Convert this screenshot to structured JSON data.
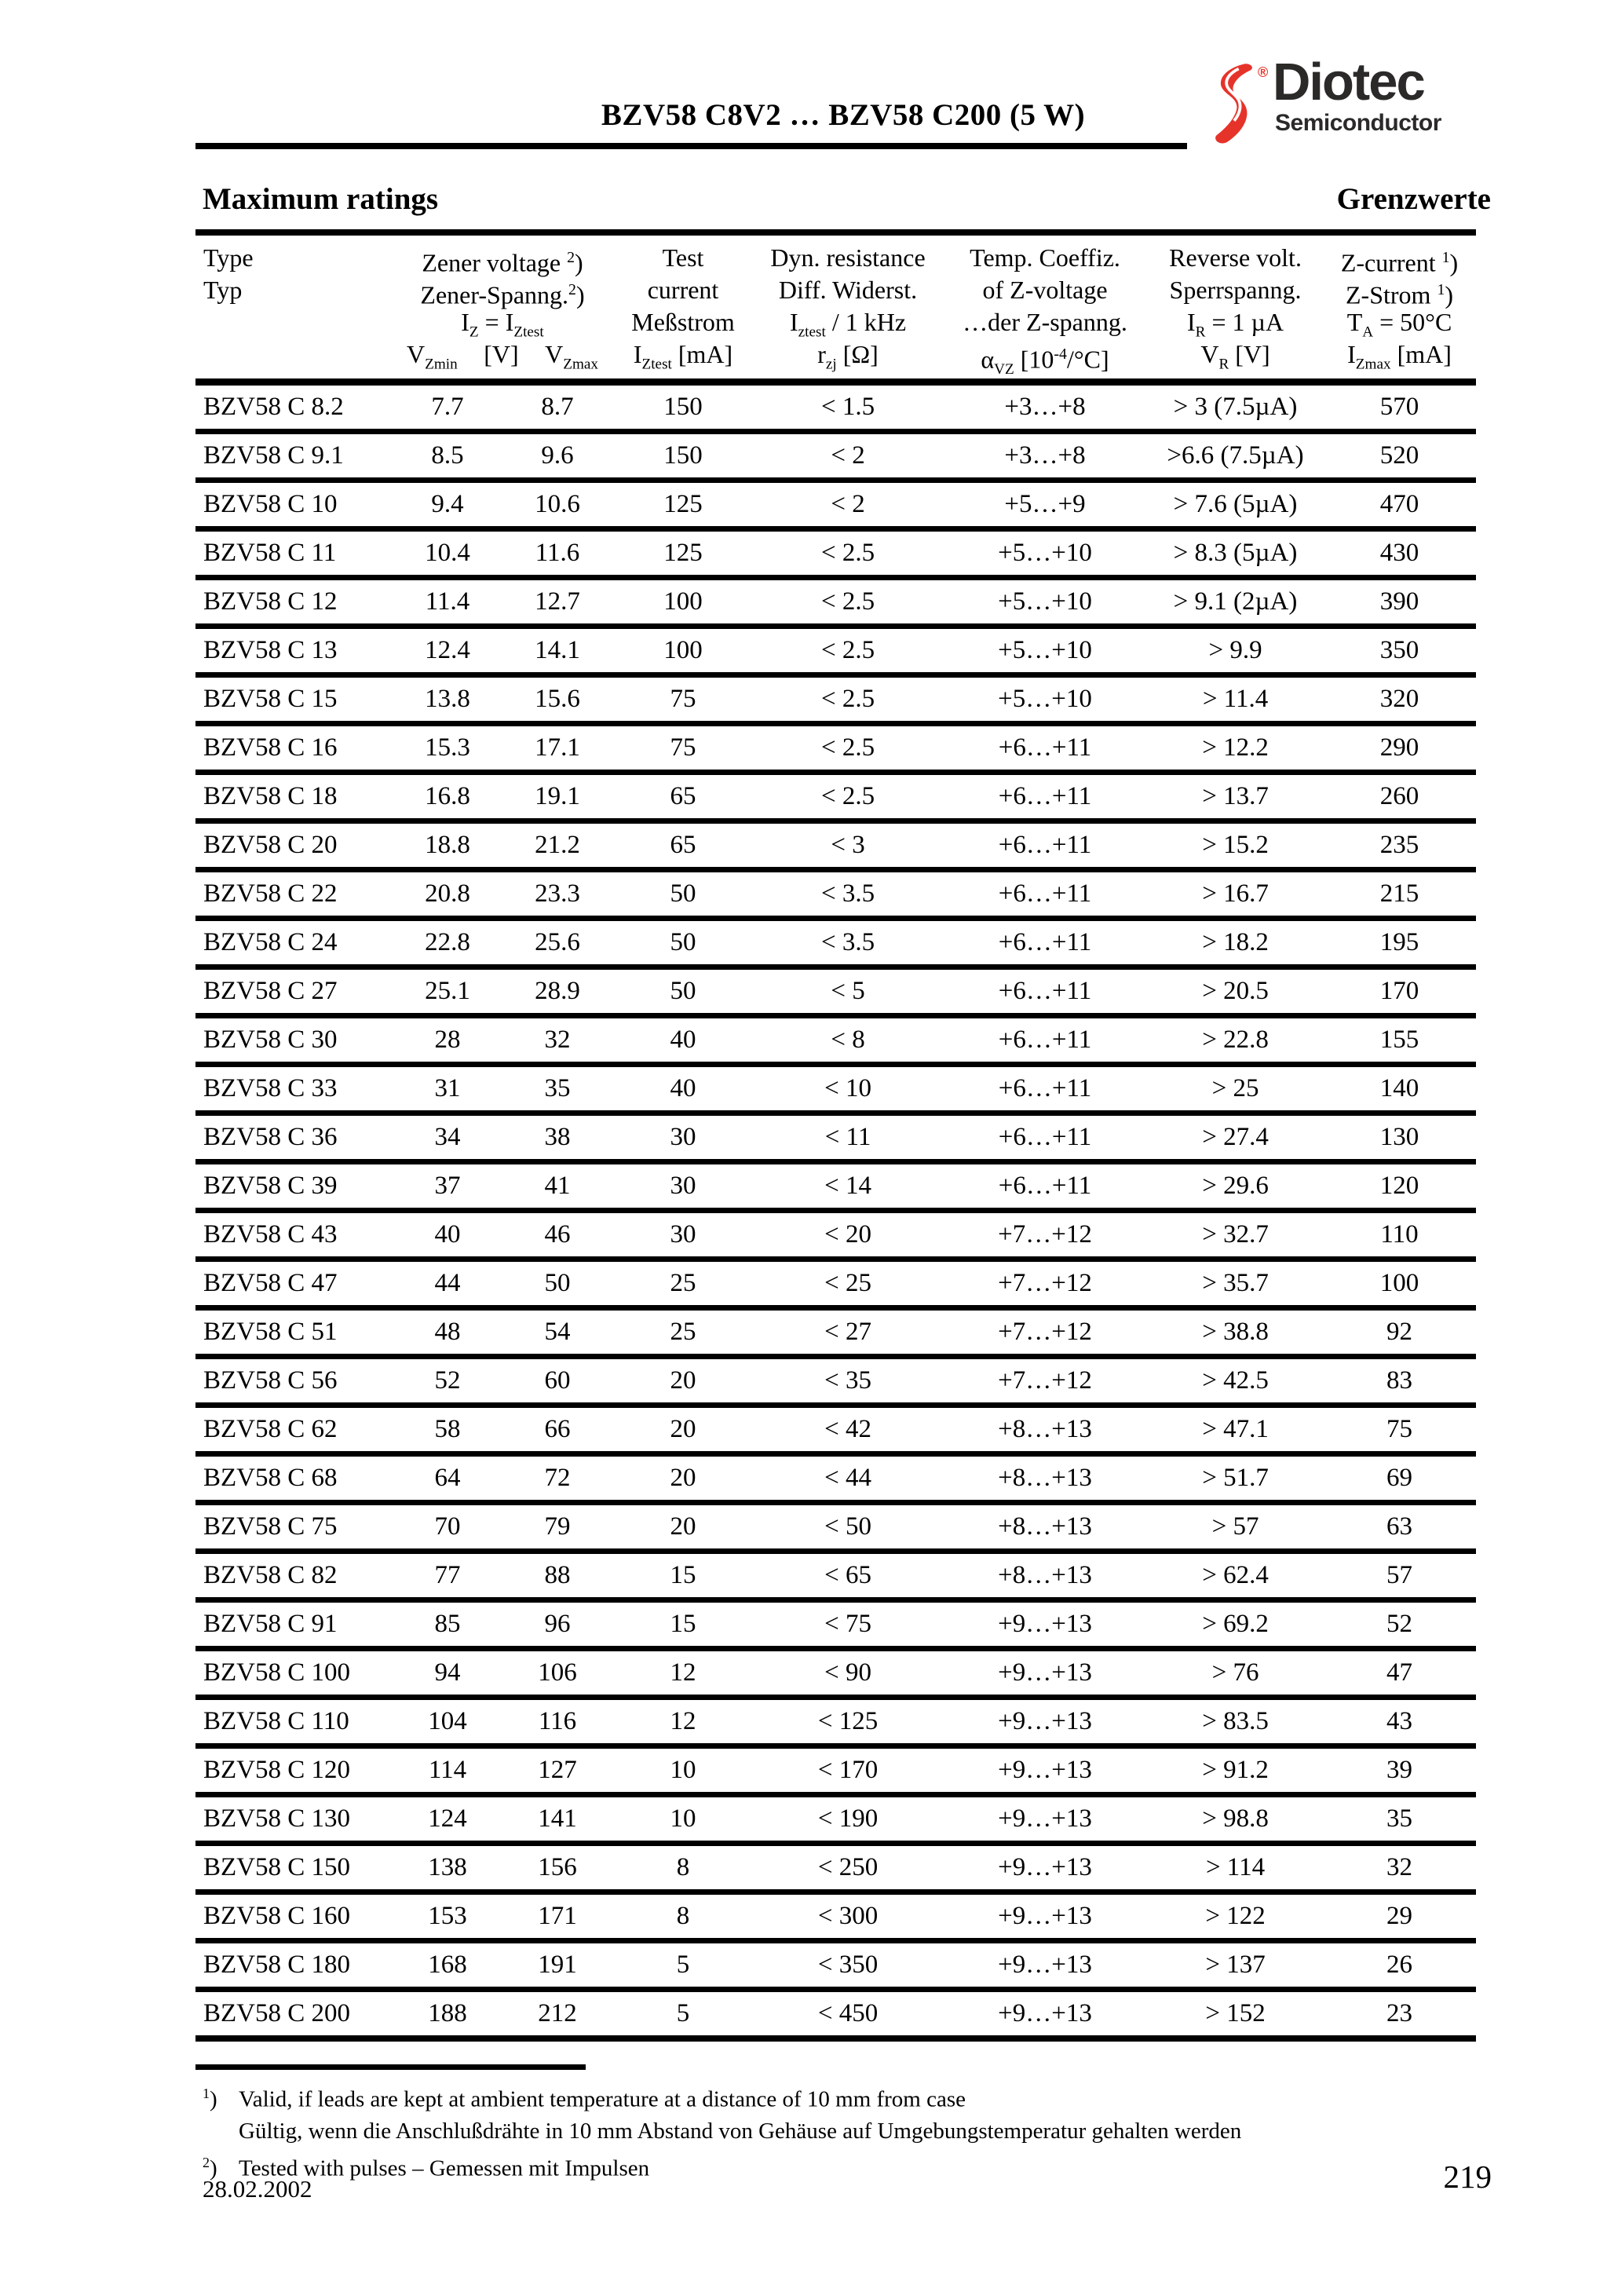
{
  "page": {
    "title": "BZV58 C8V2 … BZV58 C200 (5 W)",
    "section_left": "Maximum ratings",
    "section_right": "Grenzwerte",
    "date": "28.02.2002",
    "page_number": "219"
  },
  "logo": {
    "brand": "Diotec",
    "sub": "Semiconductor",
    "registered": "®",
    "brand_red": "#e6332a",
    "brand_dark": "#2b2a29"
  },
  "table": {
    "col_keys": [
      "type",
      "vzmin",
      "vzmax",
      "iztest",
      "rzj",
      "alpha-vz",
      "vr",
      "izmax"
    ],
    "header": {
      "type": [
        [
          {
            "t": "Type"
          }
        ],
        [
          {
            "t": "Typ"
          }
        ]
      ],
      "zener": {
        "lines": [
          [
            {
              "t": "Zener voltage "
            },
            {
              "sup": "2"
            },
            {
              "t": ")"
            }
          ],
          [
            {
              "t": "Zener-Spanng."
            },
            {
              "sup": "2"
            },
            {
              "t": ")"
            }
          ],
          [
            {
              "t": "I"
            },
            {
              "sub": "Z"
            },
            {
              "t": " = I"
            },
            {
              "sub": "Ztest"
            }
          ]
        ],
        "vmin": [
          {
            "t": "V"
          },
          {
            "sub": "Zmin"
          }
        ],
        "vunit": [
          {
            "t": "[V]"
          }
        ],
        "vmax": [
          {
            "t": "V"
          },
          {
            "sub": "Zmax"
          }
        ]
      },
      "test": [
        [
          {
            "t": "Test"
          }
        ],
        [
          {
            "t": "current"
          }
        ],
        [
          {
            "t": "Meßstrom"
          }
        ],
        [
          {
            "t": "I"
          },
          {
            "sub": "Ztest"
          },
          {
            "t": " [mA]"
          }
        ]
      ],
      "dyn": [
        [
          {
            "t": "Dyn. resistance"
          }
        ],
        [
          {
            "t": "Diff. Widerst."
          }
        ],
        [
          {
            "t": "I"
          },
          {
            "sub": "ztest"
          },
          {
            "t": " / 1 kHz"
          }
        ],
        [
          {
            "t": "r"
          },
          {
            "sub": "zj"
          },
          {
            "t": " [Ω]"
          }
        ]
      ],
      "temp": [
        [
          {
            "t": "Temp. Coeffiz."
          }
        ],
        [
          {
            "t": "of Z-voltage"
          }
        ],
        [
          {
            "t": "…der Z-spanng."
          }
        ],
        [
          {
            "t": "α"
          },
          {
            "sub": "VZ"
          },
          {
            "t": " [10"
          },
          {
            "sup": "-4"
          },
          {
            "t": "/°C]"
          }
        ]
      ],
      "reverse": [
        [
          {
            "t": "Reverse volt."
          }
        ],
        [
          {
            "t": "Sperrspanng."
          }
        ],
        [
          {
            "t": "I"
          },
          {
            "sub": "R"
          },
          {
            "t": " = 1 µA"
          }
        ],
        [
          {
            "t": "V"
          },
          {
            "sub": "R"
          },
          {
            "t": " [V]"
          }
        ]
      ],
      "zcur": [
        [
          {
            "t": "Z-current "
          },
          {
            "sup": "1"
          },
          {
            "t": ")"
          }
        ],
        [
          {
            "t": "Z-Strom "
          },
          {
            "sup": "1"
          },
          {
            "t": ")"
          }
        ],
        [
          {
            "t": "T"
          },
          {
            "sub": "A"
          },
          {
            "t": " = 50°C"
          }
        ],
        [
          {
            "t": "I"
          },
          {
            "sub": "Zmax"
          },
          {
            "t": " [mA]"
          }
        ]
      ]
    },
    "rows": [
      [
        "BZV58 C 8.2",
        "7.7",
        "8.7",
        "150",
        "< 1.5",
        "+3…+8",
        "> 3 (7.5µA)",
        "570"
      ],
      [
        "BZV58 C 9.1",
        "8.5",
        "9.6",
        "150",
        "< 2",
        "+3…+8",
        ">6.6 (7.5µA)",
        "520"
      ],
      [
        "BZV58 C 10",
        "9.4",
        "10.6",
        "125",
        "< 2",
        "+5…+9",
        "> 7.6 (5µA)",
        "470"
      ],
      [
        "BZV58 C 11",
        "10.4",
        "11.6",
        "125",
        "< 2.5",
        "+5…+10",
        "> 8.3 (5µA)",
        "430"
      ],
      [
        "BZV58 C 12",
        "11.4",
        "12.7",
        "100",
        "< 2.5",
        "+5…+10",
        "> 9.1 (2µA)",
        "390"
      ],
      [
        "BZV58 C 13",
        "12.4",
        "14.1",
        "100",
        "< 2.5",
        "+5…+10",
        "> 9.9",
        "350"
      ],
      [
        "BZV58 C 15",
        "13.8",
        "15.6",
        "75",
        "< 2.5",
        "+5…+10",
        "> 11.4",
        "320"
      ],
      [
        "BZV58 C 16",
        "15.3",
        "17.1",
        "75",
        "< 2.5",
        "+6…+11",
        "> 12.2",
        "290"
      ],
      [
        "BZV58 C 18",
        "16.8",
        "19.1",
        "65",
        "< 2.5",
        "+6…+11",
        "> 13.7",
        "260"
      ],
      [
        "BZV58 C 20",
        "18.8",
        "21.2",
        "65",
        "< 3",
        "+6…+11",
        "> 15.2",
        "235"
      ],
      [
        "BZV58 C 22",
        "20.8",
        "23.3",
        "50",
        "< 3.5",
        "+6…+11",
        "> 16.7",
        "215"
      ],
      [
        "BZV58 C 24",
        "22.8",
        "25.6",
        "50",
        "< 3.5",
        "+6…+11",
        "> 18.2",
        "195"
      ],
      [
        "BZV58 C 27",
        "25.1",
        "28.9",
        "50",
        "< 5",
        "+6…+11",
        "> 20.5",
        "170"
      ],
      [
        "BZV58 C 30",
        "28",
        "32",
        "40",
        "< 8",
        "+6…+11",
        "> 22.8",
        "155"
      ],
      [
        "BZV58 C 33",
        "31",
        "35",
        "40",
        "< 10",
        "+6…+11",
        "> 25",
        "140"
      ],
      [
        "BZV58 C 36",
        "34",
        "38",
        "30",
        "< 11",
        "+6…+11",
        "> 27.4",
        "130"
      ],
      [
        "BZV58 C 39",
        "37",
        "41",
        "30",
        "< 14",
        "+6…+11",
        "> 29.6",
        "120"
      ],
      [
        "BZV58 C 43",
        "40",
        "46",
        "30",
        "< 20",
        "+7…+12",
        "> 32.7",
        "110"
      ],
      [
        "BZV58 C 47",
        "44",
        "50",
        "25",
        "< 25",
        "+7…+12",
        "> 35.7",
        "100"
      ],
      [
        "BZV58 C 51",
        "48",
        "54",
        "25",
        "< 27",
        "+7…+12",
        "> 38.8",
        "92"
      ],
      [
        "BZV58 C 56",
        "52",
        "60",
        "20",
        "< 35",
        "+7…+12",
        "> 42.5",
        "83"
      ],
      [
        "BZV58 C 62",
        "58",
        "66",
        "20",
        "< 42",
        "+8…+13",
        "> 47.1",
        "75"
      ],
      [
        "BZV58 C 68",
        "64",
        "72",
        "20",
        "< 44",
        "+8…+13",
        "> 51.7",
        "69"
      ],
      [
        "BZV58 C 75",
        "70",
        "79",
        "20",
        "< 50",
        "+8…+13",
        "> 57",
        "63"
      ],
      [
        "BZV58 C 82",
        "77",
        "88",
        "15",
        "< 65",
        "+8…+13",
        "> 62.4",
        "57"
      ],
      [
        "BZV58 C 91",
        "85",
        "96",
        "15",
        "< 75",
        "+9…+13",
        "> 69.2",
        "52"
      ],
      [
        "BZV58 C 100",
        "94",
        "106",
        "12",
        "< 90",
        "+9…+13",
        "> 76",
        "47"
      ],
      [
        "BZV58 C 110",
        "104",
        "116",
        "12",
        "< 125",
        "+9…+13",
        "> 83.5",
        "43"
      ],
      [
        "BZV58 C 120",
        "114",
        "127",
        "10",
        "< 170",
        "+9…+13",
        "> 91.2",
        "39"
      ],
      [
        "BZV58 C 130",
        "124",
        "141",
        "10",
        "< 190",
        "+9…+13",
        "> 98.8",
        "35"
      ],
      [
        "BZV58 C 150",
        "138",
        "156",
        "8",
        "< 250",
        "+9…+13",
        "> 114",
        "32"
      ],
      [
        "BZV58 C 160",
        "153",
        "171",
        "8",
        "< 300",
        "+9…+13",
        "> 122",
        "29"
      ],
      [
        "BZV58 C 180",
        "168",
        "191",
        "5",
        "< 350",
        "+9…+13",
        "> 137",
        "26"
      ],
      [
        "BZV58 C 200",
        "188",
        "212",
        "5",
        "< 450",
        "+9…+13",
        "> 152",
        "23"
      ]
    ]
  },
  "footnotes": {
    "items": [
      {
        "marker": [
          {
            "sup": "1"
          },
          {
            "t": ")"
          }
        ],
        "lines": [
          "Valid, if leads are kept at ambient temperature at a distance of 10 mm from case",
          "Gültig, wenn die Anschlußdrähte in 10 mm Abstand von Gehäuse auf Umgebungstemperatur gehalten werden"
        ]
      },
      {
        "marker": [
          {
            "sup": "2"
          },
          {
            "t": ")"
          }
        ],
        "lines": [
          "Tested with pulses – Gemessen mit Impulsen"
        ]
      }
    ]
  }
}
